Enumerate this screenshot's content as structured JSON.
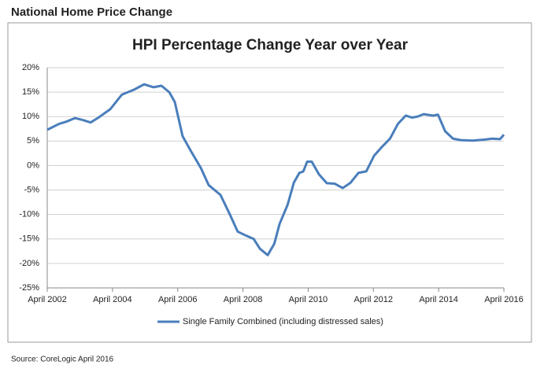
{
  "header": "National Home Price Change",
  "source": "Source: CoreLogic April 2016",
  "chart_data": {
    "type": "line",
    "title": "HPI Percentage Change Year over Year",
    "x": [
      2002.25,
      2002.61,
      2002.85,
      2003.1,
      2003.34,
      2003.58,
      2003.82,
      2004.18,
      2004.54,
      2004.91,
      2005.22,
      2005.51,
      2005.75,
      2005.99,
      2006.16,
      2006.4,
      2006.65,
      2006.96,
      2007.2,
      2007.56,
      2007.85,
      2008.09,
      2008.34,
      2008.58,
      2008.77,
      2009.01,
      2009.21,
      2009.37,
      2009.62,
      2009.81,
      2009.98,
      2010.1,
      2010.22,
      2010.36,
      2010.58,
      2010.82,
      2011.06,
      2011.31,
      2011.55,
      2011.79,
      2012.03,
      2012.27,
      2012.51,
      2012.76,
      2013.0,
      2013.24,
      2013.43,
      2013.6,
      2013.79,
      2014.08,
      2014.23,
      2014.45,
      2014.69,
      2014.93,
      2015.29,
      2015.65,
      2015.89,
      2016.13,
      2016.25
    ],
    "series": [
      {
        "name": "Single Family Combined (including distressed sales)",
        "color": "#4a7ebb",
        "values": [
          7.3,
          8.5,
          9.0,
          9.7,
          9.3,
          8.8,
          9.8,
          11.5,
          14.5,
          15.5,
          16.6,
          16.0,
          16.3,
          15.0,
          13,
          6,
          3,
          -0.5,
          -4,
          -6,
          -10,
          -13.5,
          -14.3,
          -15,
          -17,
          -18.3,
          -16,
          -12,
          -8,
          -3.5,
          -1.5,
          -1.2,
          0.8,
          0.8,
          -1.8,
          -3.6,
          -3.7,
          -4.6,
          -3.5,
          -1.5,
          -1.2,
          2,
          3.8,
          5.5,
          8.5,
          10.2,
          9.8,
          10,
          10.5,
          10.2,
          10.4,
          7.0,
          5.5,
          5.2,
          5.1,
          5.3,
          5.5,
          5.4,
          6.3
        ]
      }
    ],
    "xlim": [
      2002.25,
      2016.25
    ],
    "xticks": [
      {
        "value": 2002.25,
        "label": "April 2002"
      },
      {
        "value": 2004.25,
        "label": "April 2004"
      },
      {
        "value": 2006.25,
        "label": "April 2006"
      },
      {
        "value": 2008.25,
        "label": "April 2008"
      },
      {
        "value": 2010.25,
        "label": "April 2010"
      },
      {
        "value": 2012.25,
        "label": "April 2012"
      },
      {
        "value": 2014.25,
        "label": "April 2014"
      },
      {
        "value": 2016.25,
        "label": "April 2016"
      }
    ],
    "ylim": [
      -25,
      20
    ],
    "yticks": [
      {
        "value": -25,
        "label": "-25%"
      },
      {
        "value": -20,
        "label": "-20%"
      },
      {
        "value": -15,
        "label": "-15%"
      },
      {
        "value": -10,
        "label": "-10%"
      },
      {
        "value": -5,
        "label": "-5%"
      },
      {
        "value": 0,
        "label": "0%"
      },
      {
        "value": 5,
        "label": "5%"
      },
      {
        "value": 10,
        "label": "10%"
      },
      {
        "value": 15,
        "label": "15%"
      },
      {
        "value": 20,
        "label": "20%"
      }
    ],
    "grid": true,
    "legend": "bottom"
  }
}
